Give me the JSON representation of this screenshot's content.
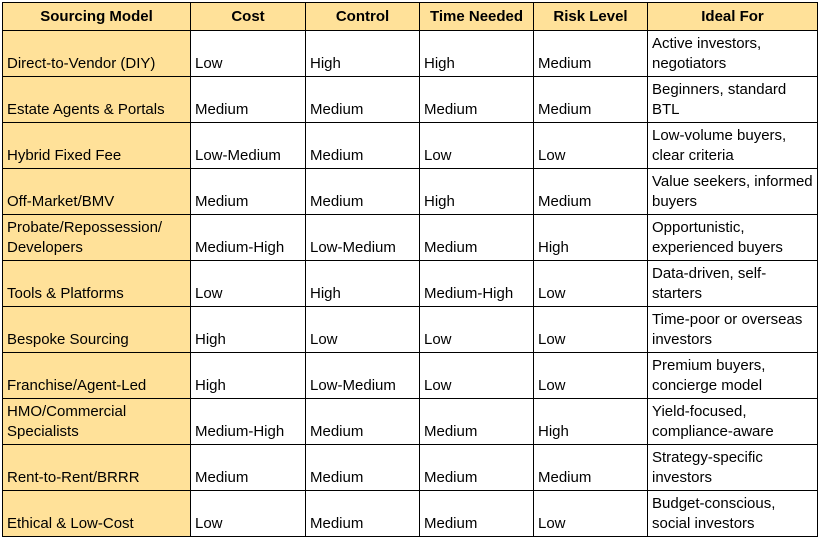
{
  "colors": {
    "header_bg": "#ffe199",
    "model_col_bg": "#ffe199",
    "border": "#000000",
    "text": "#000000"
  },
  "headers": [
    "Sourcing Model",
    "Cost",
    "Control",
    "Time Needed",
    "Risk Level",
    "Ideal For"
  ],
  "rows": [
    {
      "model": "Direct-to-Vendor (DIY)",
      "cost": "Low",
      "control": "High",
      "time": "High",
      "risk": "Medium",
      "ideal": "Active investors, negotiators"
    },
    {
      "model": "Estate Agents & Portals",
      "cost": "Medium",
      "control": "Medium",
      "time": "Medium",
      "risk": "Medium",
      "ideal": "Beginners, standard BTL"
    },
    {
      "model": "Hybrid Fixed Fee",
      "cost": "Low-Medium",
      "control": "Medium",
      "time": "Low",
      "risk": "Low",
      "ideal": "Low-volume buyers, clear criteria"
    },
    {
      "model": "Off-Market/BMV",
      "cost": "Medium",
      "control": "Medium",
      "time": "High",
      "risk": "Medium",
      "ideal": "Value seekers, informed buyers"
    },
    {
      "model": "Probate/Repossession/ Developers",
      "cost": "Medium-High",
      "control": "Low-Medium",
      "time": "Medium",
      "risk": "High",
      "ideal": "Opportunistic, experienced buyers"
    },
    {
      "model": "Tools & Platforms",
      "cost": "Low",
      "control": "High",
      "time": "Medium-High",
      "risk": "Low",
      "ideal": "Data-driven, self-starters"
    },
    {
      "model": "Bespoke Sourcing",
      "cost": "High",
      "control": "Low",
      "time": "Low",
      "risk": "Low",
      "ideal": "Time-poor or overseas investors"
    },
    {
      "model": "Franchise/Agent-Led",
      "cost": "High",
      "control": "Low-Medium",
      "time": "Low",
      "risk": "Low",
      "ideal": "Premium buyers, concierge model"
    },
    {
      "model": "HMO/Commercial Specialists",
      "cost": "Medium-High",
      "control": "Medium",
      "time": "Medium",
      "risk": "High",
      "ideal": "Yield-focused, compliance-aware"
    },
    {
      "model": "Rent-to-Rent/BRRR",
      "cost": "Medium",
      "control": "Medium",
      "time": "Medium",
      "risk": "Medium",
      "ideal": "Strategy-specific investors"
    },
    {
      "model": "Ethical & Low-Cost",
      "cost": "Low",
      "control": "Medium",
      "time": "Medium",
      "risk": "Low",
      "ideal": "Budget-conscious, social investors"
    }
  ]
}
